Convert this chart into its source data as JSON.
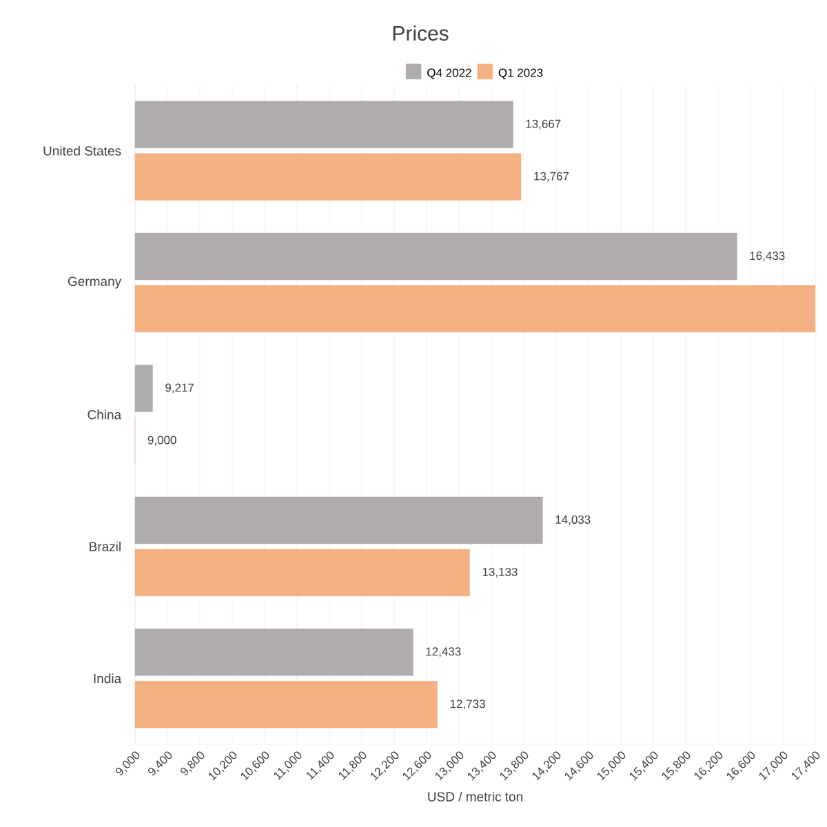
{
  "chart_data": {
    "type": "bar",
    "orientation": "horizontal",
    "title": "Prices",
    "xlabel": "USD / metric ton",
    "categories": [
      "United States",
      "Germany",
      "China",
      "Brazil",
      "India"
    ],
    "series": [
      {
        "name": "Q4 2022",
        "color": "#b0acab",
        "values": [
          13667,
          16433,
          9217,
          14033,
          12433
        ],
        "value_labels": [
          "13,667",
          "16,433",
          "9,217",
          "14,033",
          "12,433"
        ]
      },
      {
        "name": "Q1 2023",
        "color": "#f4b183",
        "values": [
          13767,
          17400,
          9000,
          13133,
          12733
        ],
        "value_labels": [
          "13,767",
          null,
          "9,000",
          "13,133",
          "12,733"
        ]
      }
    ],
    "xlim": [
      9000,
      17400
    ],
    "xticks": [
      {
        "value": 9000,
        "label": "9,000"
      },
      {
        "value": 9400,
        "label": "9,400"
      },
      {
        "value": 9800,
        "label": "9,800"
      },
      {
        "value": 10200,
        "label": "10,200"
      },
      {
        "value": 10600,
        "label": "10,600"
      },
      {
        "value": 11000,
        "label": "11,000"
      },
      {
        "value": 11400,
        "label": "11,400"
      },
      {
        "value": 11800,
        "label": "11,800"
      },
      {
        "value": 12200,
        "label": "12,200"
      },
      {
        "value": 12600,
        "label": "12,600"
      },
      {
        "value": 13000,
        "label": "13,000"
      },
      {
        "value": 13400,
        "label": "13,400"
      },
      {
        "value": 13800,
        "label": "13,800"
      },
      {
        "value": 14200,
        "label": "14,200"
      },
      {
        "value": 14600,
        "label": "14,600"
      },
      {
        "value": 15000,
        "label": "15,000"
      },
      {
        "value": 15400,
        "label": "15,400"
      },
      {
        "value": 15800,
        "label": "15,800"
      },
      {
        "value": 16200,
        "label": "16,200"
      },
      {
        "value": 16600,
        "label": "16,600"
      },
      {
        "value": 17000,
        "label": "17,000"
      },
      {
        "value": 17400,
        "label": "17,400"
      }
    ],
    "grid": "x",
    "legend": "top"
  }
}
